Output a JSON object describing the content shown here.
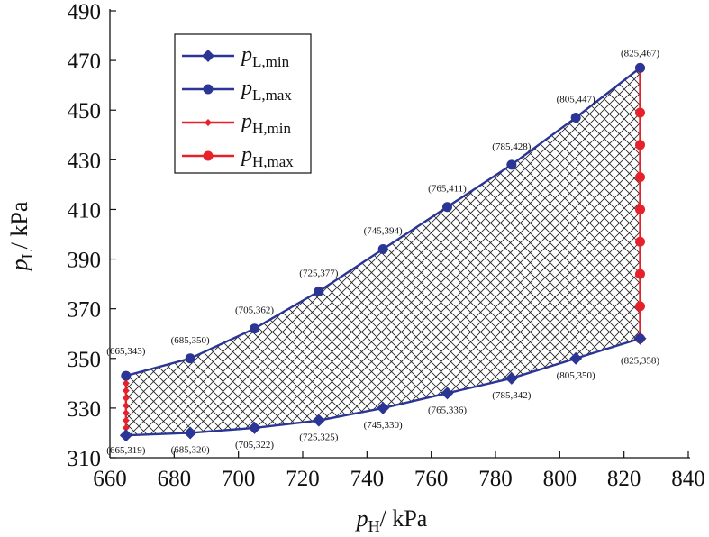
{
  "chart_data": {
    "type": "line",
    "xlabel": {
      "main": "p",
      "sub": "H",
      "unit": "/ kPa"
    },
    "ylabel": {
      "main": "p",
      "sub": "L",
      "unit": "/ kPa"
    },
    "xlim": [
      660,
      840
    ],
    "ylim": [
      310,
      490
    ],
    "xticks": [
      660,
      680,
      700,
      720,
      740,
      760,
      780,
      800,
      820,
      840
    ],
    "yticks": [
      310,
      330,
      350,
      370,
      390,
      410,
      430,
      450,
      470,
      490
    ],
    "grid": false,
    "legend_position": "top-left",
    "fill": "crosshatch",
    "series": [
      {
        "name": "p_L,min",
        "legend_main": "p",
        "legend_sub": "L,min",
        "color": "#2b3595",
        "marker": "diamond",
        "x": [
          665,
          685,
          705,
          725,
          745,
          765,
          785,
          805,
          825
        ],
        "y": [
          319,
          320,
          322,
          325,
          330,
          336,
          342,
          350,
          358
        ]
      },
      {
        "name": "p_L,max",
        "legend_main": "p",
        "legend_sub": "L,max",
        "color": "#2b3595",
        "marker": "circle",
        "x": [
          665,
          685,
          705,
          725,
          745,
          765,
          785,
          805,
          825
        ],
        "y": [
          343,
          350,
          362,
          377,
          394,
          411,
          428,
          447,
          467
        ]
      },
      {
        "name": "p_H,min",
        "legend_main": "p",
        "legend_sub": "H,min",
        "color": "#e8202a",
        "marker": "small-diamond",
        "x": [
          665,
          665,
          665,
          665,
          665,
          665,
          665,
          665,
          665
        ],
        "y": [
          319,
          322,
          325,
          328,
          331,
          334,
          337,
          340,
          343
        ]
      },
      {
        "name": "p_H,max",
        "legend_main": "p",
        "legend_sub": "H,max",
        "color": "#e8202a",
        "marker": "circle",
        "x": [
          825,
          825,
          825,
          825,
          825,
          825,
          825,
          825,
          825
        ],
        "y": [
          358,
          371,
          384,
          397,
          410,
          423,
          436,
          449,
          467
        ]
      }
    ],
    "annotations": [
      {
        "text": "(665,319)",
        "x": 665,
        "y": 319,
        "pos": "below"
      },
      {
        "text": "(685,320)",
        "x": 685,
        "y": 320,
        "pos": "below"
      },
      {
        "text": "(705,322)",
        "x": 705,
        "y": 322,
        "pos": "below"
      },
      {
        "text": "(725,325)",
        "x": 725,
        "y": 325,
        "pos": "below"
      },
      {
        "text": "(745,330)",
        "x": 745,
        "y": 330,
        "pos": "below"
      },
      {
        "text": "(765,336)",
        "x": 765,
        "y": 336,
        "pos": "below"
      },
      {
        "text": "(785,342)",
        "x": 785,
        "y": 342,
        "pos": "below"
      },
      {
        "text": "(805,350)",
        "x": 805,
        "y": 350,
        "pos": "below"
      },
      {
        "text": "(825,358)",
        "x": 825,
        "y": 358,
        "pos": "below"
      },
      {
        "text": "(665,343)",
        "x": 665,
        "y": 343,
        "pos": "above"
      },
      {
        "text": "(685,350)",
        "x": 685,
        "y": 350,
        "pos": "above"
      },
      {
        "text": "(705,362)",
        "x": 705,
        "y": 362,
        "pos": "above"
      },
      {
        "text": "(725,377)",
        "x": 725,
        "y": 377,
        "pos": "above"
      },
      {
        "text": "(745,394)",
        "x": 745,
        "y": 394,
        "pos": "above"
      },
      {
        "text": "(765,411)",
        "x": 765,
        "y": 411,
        "pos": "above"
      },
      {
        "text": "(785,428)",
        "x": 785,
        "y": 428,
        "pos": "above"
      },
      {
        "text": "(805,447)",
        "x": 805,
        "y": 447,
        "pos": "above"
      },
      {
        "text": "(825,467)",
        "x": 825,
        "y": 467,
        "pos": "above"
      }
    ]
  }
}
